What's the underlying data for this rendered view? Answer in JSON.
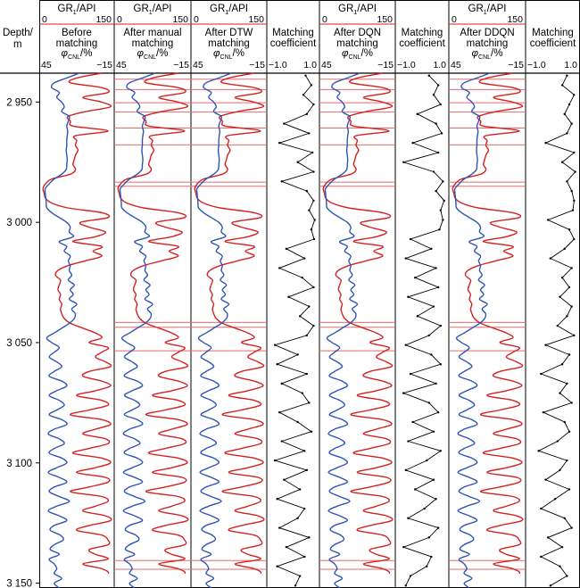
{
  "chart_data": {
    "type": "line",
    "depth_axis": {
      "label_line1": "Depth/",
      "label_line2": "m",
      "min": 2938,
      "max": 3152,
      "ticks": [
        {
          "value": 2950,
          "label": "2 950"
        },
        {
          "value": 3000,
          "label": "3 000"
        },
        {
          "value": 3050,
          "label": "3 050"
        },
        {
          "value": 3100,
          "label": "3 100"
        },
        {
          "value": 3150,
          "label": "3 150"
        }
      ]
    },
    "gr_axis": {
      "label": "GR",
      "sub": "1",
      "unit": "/API",
      "min": "0",
      "max": "150"
    },
    "cnl_axis": {
      "symbol": "φ",
      "sub": "CNL",
      "unit": "/%",
      "left": "45",
      "right": "−15"
    },
    "coef_axis": {
      "title_line1": "Matching",
      "title_line2": "coefficient",
      "min": "−1.0",
      "max": "1.0"
    },
    "colors": {
      "gr": "#2f55b4",
      "cnl": "#d42222",
      "boundary": "#e66b6b",
      "coef": "#000000",
      "frame": "#000000"
    },
    "log_tracks": [
      {
        "title_line1": "Before",
        "title_line2": "matching",
        "title_line3": "",
        "boundaries": []
      },
      {
        "title_line1": "After manual",
        "title_line2": "matching",
        "title_line3": "",
        "boundaries": [
          2940.5,
          2944.8,
          2950.3,
          2954.2,
          2960.8,
          2967.8,
          2983.3,
          2985.0,
          3041.6,
          3043.6,
          3053.4,
          3140.6,
          3144.2
        ]
      },
      {
        "title_line1": "After DTW",
        "title_line2": "matching",
        "title_line3": "",
        "boundaries": [
          2940.5,
          2944.8,
          2950.3,
          2954.2,
          2960.8,
          2967.8,
          2983.3,
          2985.0,
          3041.6,
          3043.6,
          3053.4,
          3140.6,
          3144.2
        ]
      },
      {
        "title_line1": "After DQN",
        "title_line2": "matching",
        "title_line3": "",
        "boundaries": [
          2940.5,
          2944.8,
          2950.3,
          2954.2,
          2960.8,
          2967.8,
          2983.3,
          2985.0,
          3041.6,
          3043.6,
          3053.4,
          3140.6,
          3144.2
        ]
      },
      {
        "title_line1": "After DDQN",
        "title_line2": "matching",
        "title_line3": "",
        "boundaries": [
          2940.5,
          2944.8,
          2950.3,
          2954.2,
          2960.8,
          2967.8,
          2983.3,
          2985.0,
          3041.6,
          3043.6,
          3053.4,
          3140.6,
          3144.2
        ]
      }
    ],
    "coef_tracks": [
      {
        "title_line1": "Matching",
        "title_line2": "coefficient"
      },
      {
        "title_line1": "Matching",
        "title_line2": "coefficient"
      },
      {
        "title_line1": "Matching",
        "title_line2": "coefficient"
      }
    ],
    "series_gr_depth": [
      2938,
      2940,
      2942,
      2944,
      2946,
      2948,
      2950,
      2952,
      2954,
      2956,
      2958,
      2960,
      2962,
      2964,
      2966,
      2968,
      2970,
      2972,
      2974,
      2976,
      2978,
      2980,
      2982,
      2984,
      2986,
      2988,
      2990,
      2992,
      2994,
      2996,
      2998,
      3000,
      3002,
      3004,
      3006,
      3008,
      3010,
      3012,
      3014,
      3016,
      3018,
      3020,
      3022,
      3024,
      3026,
      3028,
      3030,
      3032,
      3034,
      3036,
      3038,
      3040,
      3042,
      3044,
      3046,
      3048,
      3050,
      3052,
      3054,
      3056,
      3058,
      3060,
      3062,
      3064,
      3066,
      3068,
      3070,
      3072,
      3074,
      3076,
      3078,
      3080,
      3082,
      3084,
      3086,
      3088,
      3090,
      3092,
      3094,
      3096,
      3098,
      3100,
      3102,
      3104,
      3106,
      3108,
      3110,
      3112,
      3114,
      3116,
      3118,
      3120,
      3122,
      3124,
      3126,
      3128,
      3130,
      3132,
      3134,
      3136,
      3138,
      3140,
      3142,
      3144,
      3146,
      3148,
      3150,
      3152
    ],
    "gr_values": [
      80,
      55,
      30,
      25,
      40,
      35,
      45,
      50,
      45,
      60,
      58,
      55,
      57,
      56,
      55,
      55,
      54,
      55,
      56,
      55,
      54,
      45,
      30,
      20,
      12,
      12,
      13,
      14,
      15,
      25,
      40,
      55,
      62,
      60,
      68,
      40,
      55,
      50,
      62,
      58,
      62,
      60,
      65,
      58,
      70,
      62,
      68,
      60,
      75,
      65,
      72,
      70,
      60,
      45,
      30,
      15,
      25,
      40,
      30,
      20,
      35,
      45,
      30,
      20,
      45,
      55,
      35,
      20,
      40,
      50,
      35,
      20,
      45,
      55,
      30,
      18,
      40,
      50,
      30,
      20,
      45,
      55,
      35,
      18,
      40,
      55,
      30,
      20,
      40,
      60,
      35,
      18,
      40,
      55,
      30,
      22,
      42,
      48,
      30,
      22,
      40,
      20,
      30,
      35,
      30,
      45,
      30,
      40
    ],
    "cnl_values": [
      -5,
      15,
      20,
      -5,
      -10,
      10,
      -5,
      -12,
      8,
      22,
      20,
      18,
      -10,
      16,
      15,
      16,
      14,
      16,
      17,
      18,
      16,
      20,
      35,
      40,
      42,
      41,
      40,
      35,
      22,
      -5,
      -10,
      12,
      5,
      -8,
      0,
      18,
      -5,
      2,
      -5,
      8,
      22,
      30,
      32,
      28,
      29,
      30,
      28,
      29,
      27,
      28,
      27,
      25,
      20,
      10,
      0,
      -5,
      5,
      -10,
      -5,
      0,
      -8,
      -12,
      5,
      10,
      -5,
      -12,
      0,
      15,
      -5,
      -10,
      5,
      20,
      -5,
      -12,
      0,
      10,
      -8,
      -10,
      5,
      18,
      -5,
      -12,
      0,
      15,
      -8,
      -10,
      5,
      20,
      -5,
      -10,
      0,
      10,
      -8,
      -12,
      5,
      15,
      -5,
      -10,
      -10,
      5,
      0,
      -10,
      10,
      -5,
      -10,
      5
    ],
    "coef_tracks_values": [
      {
        "depth": [
          2939,
          2943,
          2947,
          2951,
          2955,
          2959,
          2963,
          2967,
          2971,
          2975,
          2979,
          2983,
          2987,
          2991,
          2995,
          2999,
          3003,
          3007,
          3011,
          3015,
          3019,
          3023,
          3027,
          3031,
          3035,
          3039,
          3043,
          3047,
          3051,
          3055,
          3059,
          3063,
          3067,
          3071,
          3075,
          3079,
          3083,
          3087,
          3091,
          3095,
          3099,
          3103,
          3107,
          3111,
          3115,
          3119,
          3123,
          3127,
          3131,
          3135,
          3139,
          3143,
          3147,
          3151
        ],
        "values": [
          0.55,
          0.8,
          0.45,
          0.9,
          0.6,
          -0.4,
          0.7,
          -0.6,
          0.85,
          0.2,
          0.9,
          -0.5,
          0.6,
          0.9,
          0.7,
          0.95,
          0.8,
          0.92,
          -0.3,
          0.5,
          -0.6,
          0.4,
          0.9,
          -0.2,
          0.7,
          0.3,
          0.9,
          0.6,
          -0.8,
          0.2,
          -0.7,
          0.6,
          -0.5,
          0.4,
          0.7,
          -0.6,
          0.2,
          0.8,
          -0.5,
          0.5,
          -0.8,
          0.6,
          -0.4,
          0.3,
          -0.7,
          0.5,
          0.2,
          -0.6,
          0.7,
          -0.3,
          0.5,
          -0.7,
          0.3,
          0.1
        ]
      },
      {
        "depth": [
          2939,
          2943,
          2947,
          2951,
          2955,
          2959,
          2963,
          2967,
          2971,
          2975,
          2979,
          2983,
          2987,
          2991,
          2995,
          2999,
          3003,
          3007,
          3011,
          3015,
          3019,
          3023,
          3027,
          3031,
          3035,
          3039,
          3043,
          3047,
          3051,
          3055,
          3059,
          3063,
          3067,
          3071,
          3075,
          3079,
          3083,
          3087,
          3091,
          3095,
          3099,
          3103,
          3107,
          3111,
          3115,
          3119,
          3123,
          3127,
          3131,
          3135,
          3139,
          3143,
          3147,
          3151
        ],
        "values": [
          0.3,
          0.7,
          0.5,
          0.8,
          -0.2,
          0.6,
          0.85,
          -0.4,
          0.7,
          -0.8,
          0.5,
          0.9,
          0.6,
          0.95,
          0.8,
          0.9,
          0.75,
          -0.5,
          0.4,
          -0.7,
          0.6,
          -0.3,
          0.7,
          -0.6,
          0.5,
          -0.2,
          0.8,
          0.3,
          -0.7,
          0.4,
          0.8,
          -0.5,
          0.6,
          -0.8,
          0.3,
          0.7,
          -0.4,
          0.5,
          -0.6,
          0.8,
          0.2,
          -0.7,
          0.5,
          -0.3,
          0.6,
          0.1,
          -0.6,
          0.7,
          0.3,
          -0.8,
          0.4,
          0.2,
          -0.5,
          -0.7
        ]
      },
      {
        "depth": [
          2939,
          2943,
          2947,
          2951,
          2955,
          2959,
          2963,
          2967,
          2971,
          2975,
          2979,
          2983,
          2987,
          2991,
          2995,
          2999,
          3003,
          3007,
          3011,
          3015,
          3019,
          3023,
          3027,
          3031,
          3035,
          3039,
          3043,
          3047,
          3051,
          3055,
          3059,
          3063,
          3067,
          3071,
          3075,
          3079,
          3083,
          3087,
          3091,
          3095,
          3099,
          3103,
          3107,
          3111,
          3115,
          3119,
          3123,
          3127,
          3131,
          3135,
          3139,
          3143,
          3147,
          3151
        ],
        "values": [
          0.6,
          0.4,
          0.9,
          0.7,
          0.5,
          0.8,
          0.6,
          -0.3,
          0.9,
          0.4,
          0.95,
          0.6,
          0.8,
          0.9,
          0.85,
          -0.2,
          0.7,
          0.9,
          0.5,
          -0.1,
          0.8,
          0.4,
          0.7,
          0.3,
          0.8,
          0.6,
          0.2,
          0.9,
          -0.3,
          0.7,
          0.4,
          -0.5,
          0.6,
          0.3,
          0.8,
          -0.4,
          0.5,
          0.7,
          0.2,
          -0.6,
          0.6,
          0.3,
          -0.3,
          0.7,
          0.1,
          -0.5,
          0.5,
          0.8,
          -0.2,
          0.4,
          -0.5,
          0.3,
          0.6,
          -0.1
        ]
      }
    ]
  }
}
